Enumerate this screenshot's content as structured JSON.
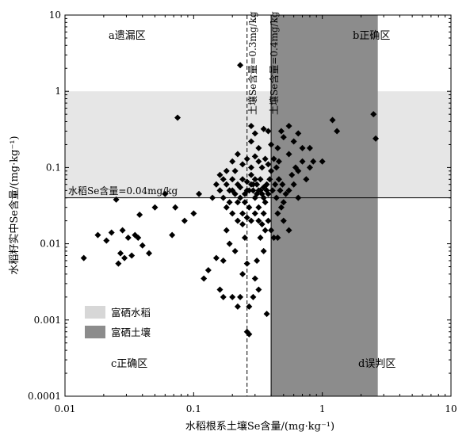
{
  "chart_data": {
    "type": "scatter",
    "title": "",
    "xlabel": "水稻根系土壤Se含量/(mg·kg⁻¹)",
    "ylabel": "水稻籽实中Se含量/(mg·kg⁻¹)",
    "xscale": "log",
    "yscale": "log",
    "xlim": [
      0.01,
      10
    ],
    "ylim": [
      0.0001,
      10
    ],
    "x_ticks": [
      "0.01",
      "0.1",
      "1",
      "10"
    ],
    "y_ticks": [
      "10",
      "1",
      "0.1",
      "0.01",
      "0.001",
      "0.0001"
    ],
    "grid": false,
    "marker": "diamond",
    "zones": {
      "a": "a遗漏区",
      "b": "b正确区",
      "c": "c正确区",
      "d": "d误判区"
    },
    "annotations": {
      "soil_03": "土壤Se含量=0.3mg/kg",
      "soil_04": "土壤Se含量=0.4mg/kg",
      "rice_004": "水稻Se含量=0.04mg/kg"
    },
    "thresholds": {
      "soil_dashed_x": 0.26,
      "soil_band_x": [
        0.4,
        2.7
      ],
      "rice_line_y": 0.04,
      "rice_band_y": [
        0.04,
        1.0
      ]
    },
    "legend": {
      "position": "lower-left",
      "items": [
        {
          "label": "富硒水稻",
          "color": "#d7d7d7"
        },
        {
          "label": "富硒土壤",
          "color": "#8c8c8c"
        }
      ]
    },
    "colors": {
      "rice_band": "#e6e6e6",
      "soil_band": "#8c8c8c",
      "points": "#000000"
    },
    "points": [
      [
        0.014,
        0.0065
      ],
      [
        0.018,
        0.013
      ],
      [
        0.021,
        0.011
      ],
      [
        0.023,
        0.014
      ],
      [
        0.025,
        0.038
      ],
      [
        0.026,
        0.0055
      ],
      [
        0.027,
        0.0075
      ],
      [
        0.028,
        0.015
      ],
      [
        0.029,
        0.0065
      ],
      [
        0.031,
        0.012
      ],
      [
        0.033,
        0.007
      ],
      [
        0.035,
        0.013
      ],
      [
        0.037,
        0.012
      ],
      [
        0.038,
        0.024
      ],
      [
        0.04,
        0.0095
      ],
      [
        0.045,
        0.0075
      ],
      [
        0.05,
        0.03
      ],
      [
        0.06,
        0.045
      ],
      [
        0.068,
        0.013
      ],
      [
        0.072,
        0.03
      ],
      [
        0.075,
        0.45
      ],
      [
        0.085,
        0.02
      ],
      [
        0.1,
        0.025
      ],
      [
        0.11,
        0.045
      ],
      [
        0.12,
        0.0035
      ],
      [
        0.13,
        0.0045
      ],
      [
        0.14,
        0.04
      ],
      [
        0.15,
        0.0065
      ],
      [
        0.16,
        0.0025
      ],
      [
        0.17,
        0.006
      ],
      [
        0.17,
        0.002
      ],
      [
        0.18,
        0.015
      ],
      [
        0.19,
        0.01
      ],
      [
        0.2,
        0.002
      ],
      [
        0.21,
        0.008
      ],
      [
        0.22,
        0.0015
      ],
      [
        0.23,
        0.002
      ],
      [
        0.24,
        0.004
      ],
      [
        0.25,
        0.012
      ],
      [
        0.26,
        0.0055
      ],
      [
        0.27,
        0.0015
      ],
      [
        0.29,
        0.002
      ],
      [
        0.3,
        0.0035
      ],
      [
        0.31,
        0.006
      ],
      [
        0.32,
        0.0025
      ],
      [
        0.33,
        0.012
      ],
      [
        0.35,
        0.008
      ],
      [
        0.26,
        0.0007
      ],
      [
        0.27,
        0.00065
      ],
      [
        0.37,
        0.0012
      ],
      [
        0.23,
        2.2
      ],
      [
        0.28,
        0.35
      ],
      [
        0.3,
        0.28
      ],
      [
        0.35,
        0.32
      ],
      [
        0.38,
        0.3
      ],
      [
        0.45,
        0.18
      ],
      [
        0.48,
        0.3
      ],
      [
        0.55,
        0.35
      ],
      [
        0.6,
        0.22
      ],
      [
        0.65,
        0.28
      ],
      [
        0.7,
        0.18
      ],
      [
        0.8,
        0.18
      ],
      [
        1.0,
        0.12
      ],
      [
        1.2,
        0.42
      ],
      [
        1.3,
        0.3
      ],
      [
        2.5,
        0.5
      ],
      [
        2.6,
        0.24
      ],
      [
        0.28,
        0.22
      ],
      [
        0.32,
        0.18
      ],
      [
        0.4,
        0.2
      ],
      [
        0.5,
        0.25
      ],
      [
        0.55,
        0.15
      ],
      [
        0.58,
        0.08
      ],
      [
        0.6,
        0.06
      ],
      [
        0.62,
        0.1
      ],
      [
        0.65,
        0.09
      ],
      [
        0.7,
        0.12
      ],
      [
        0.75,
        0.07
      ],
      [
        0.8,
        0.1
      ],
      [
        0.85,
        0.12
      ],
      [
        0.65,
        0.04
      ],
      [
        0.55,
        0.05
      ],
      [
        0.5,
        0.035
      ],
      [
        0.48,
        0.03
      ],
      [
        0.45,
        0.025
      ],
      [
        0.42,
        0.012
      ],
      [
        0.45,
        0.012
      ],
      [
        0.55,
        0.015
      ],
      [
        0.5,
        0.02
      ],
      [
        0.38,
        0.02
      ],
      [
        0.35,
        0.025
      ],
      [
        0.4,
        0.015
      ],
      [
        0.15,
        0.06
      ],
      [
        0.16,
        0.08
      ],
      [
        0.17,
        0.04
      ],
      [
        0.18,
        0.03
      ],
      [
        0.19,
        0.05
      ],
      [
        0.2,
        0.07
      ],
      [
        0.21,
        0.09
      ],
      [
        0.22,
        0.035
      ],
      [
        0.23,
        0.055
      ],
      [
        0.24,
        0.025
      ],
      [
        0.25,
        0.045
      ],
      [
        0.26,
        0.065
      ],
      [
        0.27,
        0.03
      ],
      [
        0.28,
        0.08
      ],
      [
        0.29,
        0.05
      ],
      [
        0.3,
        0.04
      ],
      [
        0.31,
        0.06
      ],
      [
        0.32,
        0.03
      ],
      [
        0.33,
        0.07
      ],
      [
        0.34,
        0.045
      ],
      [
        0.35,
        0.055
      ],
      [
        0.36,
        0.035
      ],
      [
        0.37,
        0.06
      ],
      [
        0.38,
        0.045
      ],
      [
        0.39,
        0.07
      ],
      [
        0.41,
        0.05
      ],
      [
        0.43,
        0.06
      ],
      [
        0.44,
        0.04
      ],
      [
        0.46,
        0.07
      ],
      [
        0.47,
        0.05
      ],
      [
        0.49,
        0.06
      ],
      [
        0.52,
        0.045
      ],
      [
        0.2,
        0.12
      ],
      [
        0.22,
        0.15
      ],
      [
        0.24,
        0.11
      ],
      [
        0.26,
        0.13
      ],
      [
        0.28,
        0.1
      ],
      [
        0.3,
        0.14
      ],
      [
        0.32,
        0.12
      ],
      [
        0.34,
        0.1
      ],
      [
        0.36,
        0.13
      ],
      [
        0.38,
        0.11
      ],
      [
        0.4,
        0.09
      ],
      [
        0.42,
        0.13
      ],
      [
        0.44,
        0.1
      ],
      [
        0.46,
        0.12
      ],
      [
        0.18,
        0.09
      ],
      [
        0.2,
        0.025
      ],
      [
        0.22,
        0.02
      ],
      [
        0.24,
        0.018
      ],
      [
        0.26,
        0.022
      ],
      [
        0.28,
        0.02
      ],
      [
        0.3,
        0.025
      ],
      [
        0.32,
        0.02
      ],
      [
        0.34,
        0.018
      ],
      [
        0.36,
        0.015
      ],
      [
        0.19,
        0.035
      ],
      [
        0.21,
        0.045
      ],
      [
        0.23,
        0.04
      ],
      [
        0.25,
        0.035
      ],
      [
        0.27,
        0.05
      ],
      [
        0.29,
        0.06
      ],
      [
        0.31,
        0.045
      ],
      [
        0.33,
        0.05
      ],
      [
        0.35,
        0.04
      ],
      [
        0.37,
        0.05
      ],
      [
        0.16,
        0.05
      ],
      [
        0.17,
        0.07
      ],
      [
        0.18,
        0.06
      ],
      [
        0.2,
        0.05
      ],
      [
        0.22,
        0.06
      ],
      [
        0.24,
        0.07
      ],
      [
        0.26,
        0.05
      ],
      [
        0.28,
        0.06
      ],
      [
        0.3,
        0.07
      ],
      [
        0.32,
        0.05
      ]
    ]
  }
}
